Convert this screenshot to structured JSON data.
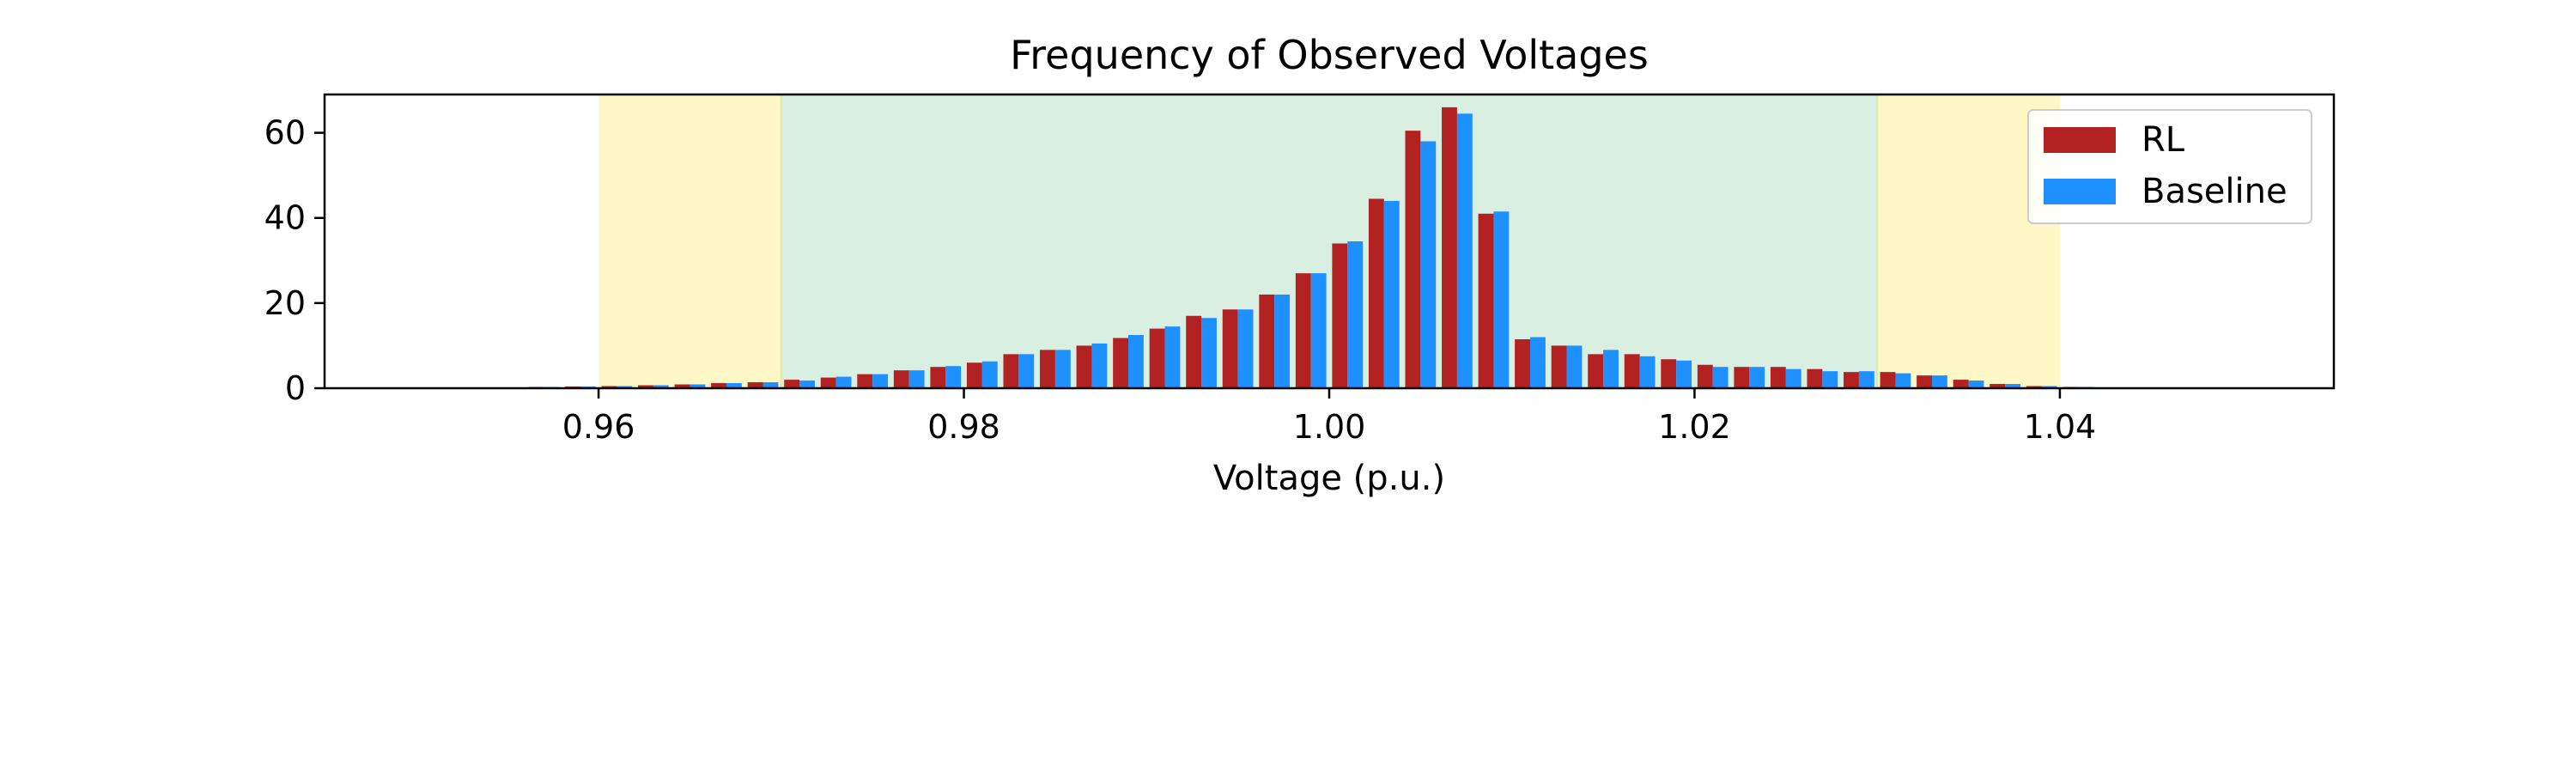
{
  "chart_data": {
    "type": "bar",
    "title": "Frequency of Observed Voltages",
    "xlabel": "Voltage (p.u.)",
    "ylabel": "",
    "xlim": [
      0.945,
      1.055
    ],
    "ylim": [
      0,
      69
    ],
    "x_ticks": [
      0.96,
      0.98,
      1.0,
      1.02,
      1.04
    ],
    "x_tick_labels": [
      "0.96",
      "0.98",
      "1.00",
      "1.02",
      "1.04"
    ],
    "y_ticks": [
      0,
      20,
      40,
      60
    ],
    "y_tick_labels": [
      "0",
      "20",
      "40",
      "60"
    ],
    "grid": false,
    "legend_position": "top-right",
    "x": [
      0.955,
      0.957,
      0.959,
      0.961,
      0.963,
      0.965,
      0.967,
      0.969,
      0.971,
      0.973,
      0.975,
      0.977,
      0.979,
      0.981,
      0.983,
      0.985,
      0.987,
      0.989,
      0.991,
      0.993,
      0.995,
      0.997,
      0.999,
      1.001,
      1.003,
      1.005,
      1.007,
      1.009,
      1.011,
      1.013,
      1.015,
      1.017,
      1.019,
      1.021,
      1.023,
      1.025,
      1.027,
      1.029,
      1.031,
      1.033,
      1.035,
      1.037,
      1.039,
      1.041,
      1.043,
      1.045
    ],
    "series": [
      {
        "name": "RL",
        "color": "#b22222",
        "values": [
          0.2,
          0.3,
          0.4,
          0.5,
          0.7,
          0.9,
          1.2,
          1.4,
          2.0,
          2.5,
          3.3,
          4.2,
          5.0,
          6.0,
          8.0,
          9.0,
          10.0,
          11.8,
          14.0,
          17.0,
          18.5,
          22.0,
          27.0,
          34.0,
          44.5,
          60.5,
          66.0,
          41.0,
          11.5,
          10.0,
          8.0,
          8.0,
          6.8,
          5.5,
          5.0,
          5.0,
          4.5,
          3.8,
          3.8,
          3.0,
          2.0,
          1.0,
          0.5,
          0.3,
          0.2,
          0.1
        ]
      },
      {
        "name": "Baseline",
        "color": "#1e90ff",
        "values": [
          0.2,
          0.3,
          0.4,
          0.5,
          0.7,
          0.9,
          1.2,
          1.4,
          1.8,
          2.7,
          3.3,
          4.2,
          5.2,
          6.3,
          8.0,
          9.0,
          10.5,
          12.5,
          14.5,
          16.5,
          18.5,
          22.0,
          27.0,
          34.5,
          44.0,
          58.0,
          64.5,
          41.5,
          12.0,
          10.0,
          9.0,
          7.5,
          6.5,
          5.0,
          5.0,
          4.5,
          4.0,
          4.0,
          3.5,
          3.0,
          1.8,
          1.0,
          0.5,
          0.3,
          0.2,
          0.1
        ]
      }
    ],
    "bands": [
      {
        "from": 0.96,
        "to": 0.97,
        "color": "#fff8c6"
      },
      {
        "from": 0.97,
        "to": 1.03,
        "color": "#d9efe2"
      },
      {
        "from": 1.03,
        "to": 1.04,
        "color": "#fff8c6"
      }
    ]
  }
}
